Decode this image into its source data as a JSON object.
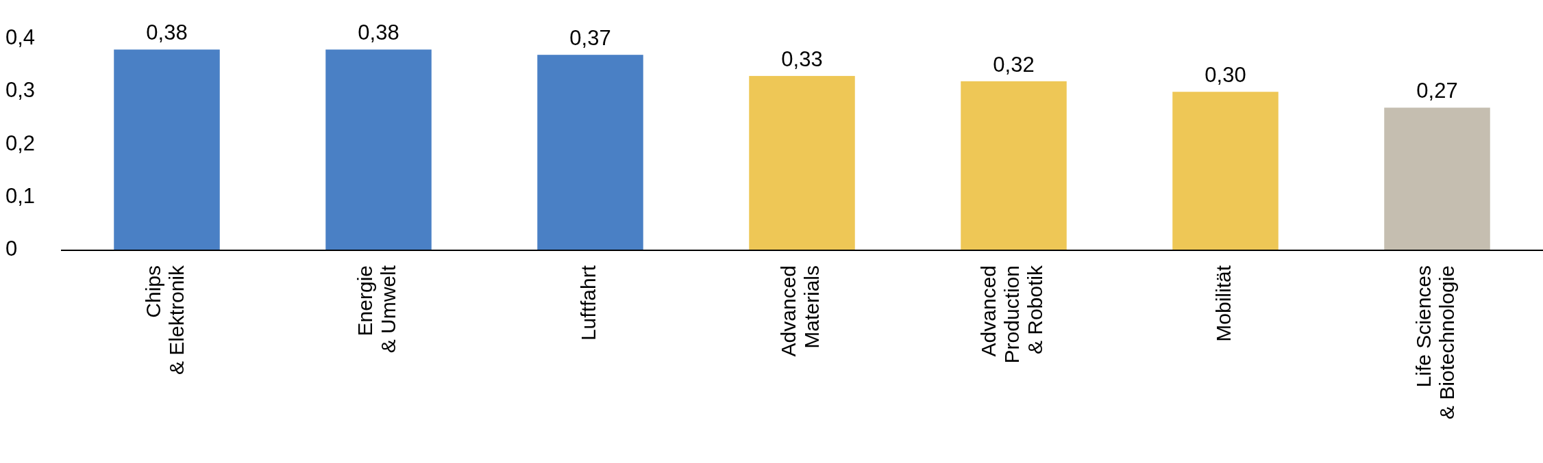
{
  "chart_data": {
    "type": "bar",
    "categories": [
      "Chips\n& Elektronik",
      "Energie\n& Umwelt",
      "Luftfahrt",
      "Advanced\nMaterials",
      "Advanced\nProduction\n& Robotik",
      "Mobilität",
      "Life Sciences\n& Biotechnologie"
    ],
    "values": [
      0.38,
      0.38,
      0.37,
      0.33,
      0.32,
      0.3,
      0.27
    ],
    "colors": [
      "#4a80c5",
      "#4a80c5",
      "#4a80c5",
      "#eec756",
      "#eec756",
      "#eec756",
      "#c5beb0"
    ],
    "value_labels": [
      "0,38",
      "0,38",
      "0,37",
      "0,33",
      "0,32",
      "0,30",
      "0,27"
    ],
    "ylim": [
      0,
      0.4
    ],
    "yticks": [
      0,
      {
        "value": 0.1,
        "label": "0,1"
      },
      {
        "value": 0.2,
        "label": "0,2"
      },
      {
        "value": 0.3,
        "label": "0,3"
      },
      {
        "value": 0.4,
        "label": "0,4"
      }
    ],
    "grid": false
  }
}
